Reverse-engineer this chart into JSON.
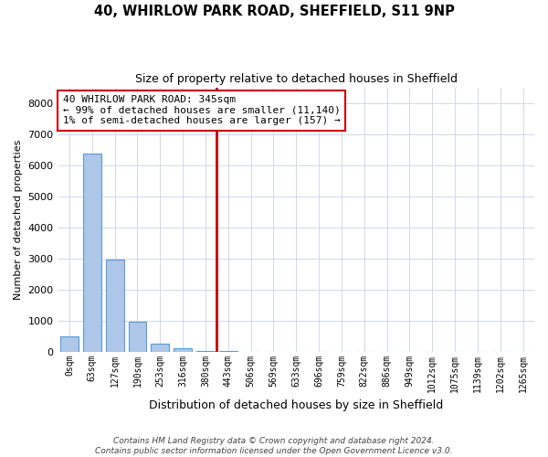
{
  "title1": "40, WHIRLOW PARK ROAD, SHEFFIELD, S11 9NP",
  "title2": "Size of property relative to detached houses in Sheffield",
  "xlabel": "Distribution of detached houses by size in Sheffield",
  "ylabel": "Number of detached properties",
  "bar_labels": [
    "0sqm",
    "63sqm",
    "127sqm",
    "190sqm",
    "253sqm",
    "316sqm",
    "380sqm",
    "443sqm",
    "506sqm",
    "569sqm",
    "633sqm",
    "696sqm",
    "759sqm",
    "822sqm",
    "886sqm",
    "949sqm",
    "1012sqm",
    "1075sqm",
    "1139sqm",
    "1202sqm",
    "1265sqm"
  ],
  "bar_values": [
    480,
    6380,
    2960,
    960,
    250,
    100,
    30,
    10,
    5,
    3,
    2,
    1,
    1,
    1,
    0,
    0,
    0,
    0,
    0,
    0,
    0
  ],
  "annotation_text": "40 WHIRLOW PARK ROAD: 345sqm\n← 99% of detached houses are smaller (11,140)\n1% of semi-detached houses are larger (157) →",
  "bar_color": "#aec6e8",
  "bar_edge_color": "#5b9bd5",
  "red_line_color": "#cc0000",
  "red_line_x": 6.5,
  "ylim": [
    0,
    8500
  ],
  "yticks": [
    0,
    1000,
    2000,
    3000,
    4000,
    5000,
    6000,
    7000,
    8000
  ],
  "footer": "Contains HM Land Registry data © Crown copyright and database right 2024.\nContains public sector information licensed under the Open Government Licence v3.0.",
  "bg_color": "#ffffff",
  "grid_color": "#d0d8e8"
}
